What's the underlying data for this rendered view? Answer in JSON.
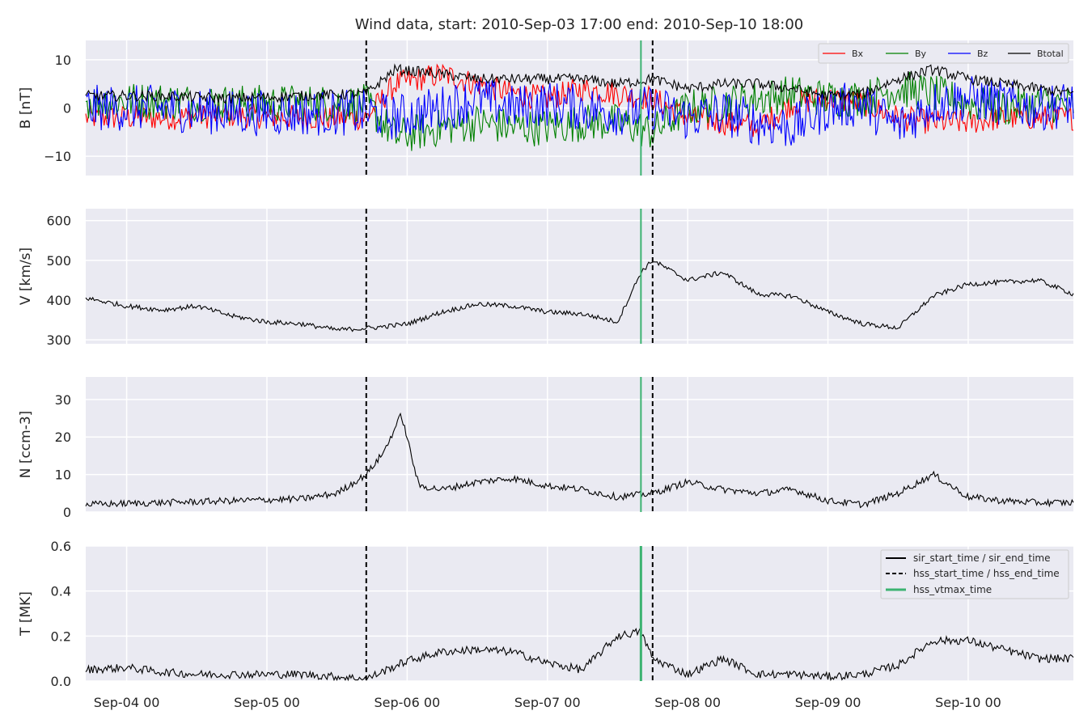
{
  "title": "Wind data, start: 2010-Sep-03 17:00  end: 2010-Sep-10 18:00",
  "colors": {
    "panel_bg": "#EAEAF2",
    "grid": "#FFFFFF",
    "bx": "#FF0000",
    "by": "#008000",
    "bz": "#0000FF",
    "btotal": "#000000",
    "vline_dashed": "#000000",
    "vline_green": "#3CB371"
  },
  "xaxis": {
    "range": [
      "2010-09-03T17:00",
      "2010-09-10T18:00"
    ],
    "ticks": [
      {
        "date": "2010-09-04T00:00",
        "label": "Sep-04 00"
      },
      {
        "date": "2010-09-05T00:00",
        "label": "Sep-05 00"
      },
      {
        "date": "2010-09-06T00:00",
        "label": "Sep-06 00"
      },
      {
        "date": "2010-09-07T00:00",
        "label": "Sep-07 00"
      },
      {
        "date": "2010-09-08T00:00",
        "label": "Sep-08 00"
      },
      {
        "date": "2010-09-09T00:00",
        "label": "Sep-09 00"
      },
      {
        "date": "2010-09-10T00:00",
        "label": "Sep-10 00"
      }
    ]
  },
  "vertical_lines": {
    "hss_start_time": "2010-09-05T17:00",
    "hss_end_time": "2010-09-07T18:00",
    "hss_vtmax_time": "2010-09-07T16:00"
  },
  "legend_b": [
    "Bx",
    "By",
    "Bz",
    "Btotal"
  ],
  "legend_lines": [
    "sir_start_time / sir_end_time",
    "hss_start_time / hss_end_time",
    "hss_vtmax_time"
  ],
  "chart_data": [
    {
      "type": "line",
      "ylabel": "B [nT]",
      "ylim": [
        -14,
        14
      ],
      "yticks": [
        {
          "v": 10,
          "label": "10"
        },
        {
          "v": 0,
          "label": "0"
        },
        {
          "v": -10,
          "label": "−10"
        }
      ],
      "grid": true,
      "legend": "top-right",
      "series": [
        {
          "name": "Bx",
          "color": "#FF0000",
          "x": [
            "2010-09-03T17:00",
            "2010-09-04T06:00",
            "2010-09-04T18:00",
            "2010-09-05T06:00",
            "2010-09-05T17:00",
            "2010-09-05T22:00",
            "2010-09-06T06:00",
            "2010-09-06T12:00",
            "2010-09-06T18:00",
            "2010-09-07T00:00",
            "2010-09-07T06:00",
            "2010-09-07T12:00",
            "2010-09-07T18:00",
            "2010-09-08T00:00",
            "2010-09-08T06:00",
            "2010-09-08T12:00",
            "2010-09-08T18:00",
            "2010-09-09T00:00",
            "2010-09-09T06:00",
            "2010-09-09T12:00",
            "2010-09-09T18:00",
            "2010-09-10T00:00",
            "2010-09-10T06:00",
            "2010-09-10T12:00",
            "2010-09-10T18:00"
          ],
          "values": [
            -2,
            -2,
            -1.5,
            -2,
            -2,
            5,
            7,
            5,
            3,
            2,
            4,
            3,
            2,
            -2,
            -3,
            -4,
            1,
            2,
            1,
            -2,
            -3,
            -3,
            -2,
            -2,
            -2
          ]
        },
        {
          "name": "By",
          "color": "#008000",
          "x": [
            "2010-09-03T17:00",
            "2010-09-04T06:00",
            "2010-09-04T18:00",
            "2010-09-05T06:00",
            "2010-09-05T17:00",
            "2010-09-05T22:00",
            "2010-09-06T06:00",
            "2010-09-06T12:00",
            "2010-09-06T18:00",
            "2010-09-07T00:00",
            "2010-09-07T06:00",
            "2010-09-07T12:00",
            "2010-09-07T18:00",
            "2010-09-08T00:00",
            "2010-09-08T06:00",
            "2010-09-08T12:00",
            "2010-09-08T18:00",
            "2010-09-09T00:00",
            "2010-09-09T06:00",
            "2010-09-09T12:00",
            "2010-09-09T18:00",
            "2010-09-10T00:00",
            "2010-09-10T06:00",
            "2010-09-10T12:00",
            "2010-09-10T18:00"
          ],
          "values": [
            1.5,
            1.5,
            1,
            1,
            1,
            -6,
            -4,
            -3,
            -4,
            -4,
            -3,
            -3,
            -5,
            0,
            1,
            2,
            3,
            2,
            2,
            4,
            3,
            1,
            0,
            1,
            0.5
          ]
        },
        {
          "name": "Bz",
          "color": "#0000FF",
          "x": [
            "2010-09-03T17:00",
            "2010-09-04T06:00",
            "2010-09-04T18:00",
            "2010-09-05T06:00",
            "2010-09-05T17:00",
            "2010-09-05T22:00",
            "2010-09-06T06:00",
            "2010-09-06T12:00",
            "2010-09-06T18:00",
            "2010-09-07T00:00",
            "2010-09-07T06:00",
            "2010-09-07T12:00",
            "2010-09-07T18:00",
            "2010-09-08T00:00",
            "2010-09-08T06:00",
            "2010-09-08T12:00",
            "2010-09-08T18:00",
            "2010-09-09T00:00",
            "2010-09-09T06:00",
            "2010-09-09T12:00",
            "2010-09-09T18:00",
            "2010-09-10T00:00",
            "2010-09-10T06:00",
            "2010-09-10T12:00",
            "2010-09-10T18:00"
          ],
          "values": [
            0,
            0,
            -1,
            -1,
            -1,
            -2,
            0,
            2,
            0,
            1,
            0,
            -1,
            0,
            -2,
            -1,
            -3,
            -4,
            0,
            1,
            -4,
            1,
            2,
            1,
            0,
            1
          ]
        },
        {
          "name": "Btotal",
          "color": "#000000",
          "x": [
            "2010-09-03T17:00",
            "2010-09-04T06:00",
            "2010-09-04T18:00",
            "2010-09-05T06:00",
            "2010-09-05T17:00",
            "2010-09-05T22:00",
            "2010-09-06T06:00",
            "2010-09-06T12:00",
            "2010-09-06T18:00",
            "2010-09-07T00:00",
            "2010-09-07T06:00",
            "2010-09-07T12:00",
            "2010-09-07T18:00",
            "2010-09-08T00:00",
            "2010-09-08T06:00",
            "2010-09-08T12:00",
            "2010-09-08T18:00",
            "2010-09-09T00:00",
            "2010-09-09T06:00",
            "2010-09-09T12:00",
            "2010-09-09T18:00",
            "2010-09-10T00:00",
            "2010-09-10T06:00",
            "2010-09-10T12:00",
            "2010-09-10T18:00"
          ],
          "values": [
            2.5,
            2.5,
            2,
            2.5,
            3,
            8,
            7,
            6,
            6,
            6,
            6,
            5,
            6,
            4,
            5,
            5,
            4,
            2.5,
            3,
            6,
            8,
            6,
            5,
            4,
            3
          ]
        }
      ]
    },
    {
      "type": "line",
      "ylabel": "V [km/s]",
      "ylim": [
        290,
        630
      ],
      "yticks": [
        {
          "v": 600,
          "label": "600"
        },
        {
          "v": 500,
          "label": "500"
        },
        {
          "v": 400,
          "label": "400"
        },
        {
          "v": 300,
          "label": "300"
        }
      ],
      "grid": true,
      "series": [
        {
          "color": "#000000",
          "x": [
            "2010-09-03T17:00",
            "2010-09-04T00:00",
            "2010-09-04T06:00",
            "2010-09-04T12:00",
            "2010-09-04T18:00",
            "2010-09-05T00:00",
            "2010-09-05T06:00",
            "2010-09-05T12:00",
            "2010-09-05T18:00",
            "2010-09-06T00:00",
            "2010-09-06T06:00",
            "2010-09-06T12:00",
            "2010-09-06T18:00",
            "2010-09-07T00:00",
            "2010-09-07T06:00",
            "2010-09-07T12:00",
            "2010-09-07T16:00",
            "2010-09-07T18:00",
            "2010-09-08T00:00",
            "2010-09-08T06:00",
            "2010-09-08T12:00",
            "2010-09-08T18:00",
            "2010-09-09T00:00",
            "2010-09-09T06:00",
            "2010-09-09T12:00",
            "2010-09-09T18:00",
            "2010-09-10T00:00",
            "2010-09-10T06:00",
            "2010-09-10T12:00",
            "2010-09-10T18:00"
          ],
          "values": [
            405,
            385,
            375,
            385,
            360,
            345,
            340,
            325,
            330,
            340,
            370,
            390,
            385,
            370,
            365,
            345,
            470,
            500,
            450,
            470,
            415,
            410,
            370,
            340,
            330,
            410,
            440,
            445,
            450,
            415
          ]
        }
      ]
    },
    {
      "type": "line",
      "ylabel": "N [ccm-3]",
      "ylim": [
        0,
        36
      ],
      "yticks": [
        {
          "v": 30,
          "label": "30"
        },
        {
          "v": 20,
          "label": "20"
        },
        {
          "v": 10,
          "label": "10"
        },
        {
          "v": 0,
          "label": "0"
        }
      ],
      "grid": true,
      "series": [
        {
          "color": "#000000",
          "x": [
            "2010-09-03T17:00",
            "2010-09-04T06:00",
            "2010-09-04T18:00",
            "2010-09-05T06:00",
            "2010-09-05T12:00",
            "2010-09-05T17:00",
            "2010-09-05T20:00",
            "2010-09-05T23:00",
            "2010-09-06T02:00",
            "2010-09-06T06:00",
            "2010-09-06T12:00",
            "2010-09-06T18:00",
            "2010-09-07T00:00",
            "2010-09-07T06:00",
            "2010-09-07T12:00",
            "2010-09-07T18:00",
            "2010-09-08T00:00",
            "2010-09-08T06:00",
            "2010-09-08T12:00",
            "2010-09-08T18:00",
            "2010-09-09T00:00",
            "2010-09-09T06:00",
            "2010-09-09T12:00",
            "2010-09-09T18:00",
            "2010-09-10T00:00",
            "2010-09-10T06:00",
            "2010-09-10T12:00",
            "2010-09-10T18:00"
          ],
          "values": [
            2,
            2.5,
            3,
            3.5,
            5,
            10,
            16,
            26,
            7,
            6,
            8,
            9,
            7,
            6,
            4,
            5,
            8,
            6,
            5,
            6,
            3,
            2,
            5,
            10,
            4,
            3,
            2.5,
            2.5
          ]
        }
      ]
    },
    {
      "type": "line",
      "ylabel": "T [MK]",
      "ylim": [
        0,
        0.6
      ],
      "yticks": [
        {
          "v": 0.6,
          "label": "0.6"
        },
        {
          "v": 0.4,
          "label": "0.4"
        },
        {
          "v": 0.2,
          "label": "0.2"
        },
        {
          "v": 0.0,
          "label": "0.0"
        }
      ],
      "grid": true,
      "legend": "top-right",
      "series": [
        {
          "color": "#000000",
          "x": [
            "2010-09-03T17:00",
            "2010-09-04T00:00",
            "2010-09-04T06:00",
            "2010-09-04T12:00",
            "2010-09-04T18:00",
            "2010-09-05T06:00",
            "2010-09-05T17:00",
            "2010-09-06T00:00",
            "2010-09-06T06:00",
            "2010-09-06T12:00",
            "2010-09-06T18:00",
            "2010-09-07T00:00",
            "2010-09-07T06:00",
            "2010-09-07T12:00",
            "2010-09-07T16:00",
            "2010-09-07T18:00",
            "2010-09-08T00:00",
            "2010-09-08T06:00",
            "2010-09-08T12:00",
            "2010-09-08T18:00",
            "2010-09-09T00:00",
            "2010-09-09T06:00",
            "2010-09-09T12:00",
            "2010-09-09T18:00",
            "2010-09-10T00:00",
            "2010-09-10T06:00",
            "2010-09-10T12:00",
            "2010-09-10T18:00"
          ],
          "values": [
            0.05,
            0.06,
            0.04,
            0.03,
            0.03,
            0.03,
            0.01,
            0.09,
            0.13,
            0.14,
            0.13,
            0.08,
            0.05,
            0.2,
            0.22,
            0.1,
            0.03,
            0.1,
            0.03,
            0.03,
            0.02,
            0.03,
            0.07,
            0.18,
            0.18,
            0.14,
            0.1,
            0.1
          ]
        }
      ]
    }
  ]
}
